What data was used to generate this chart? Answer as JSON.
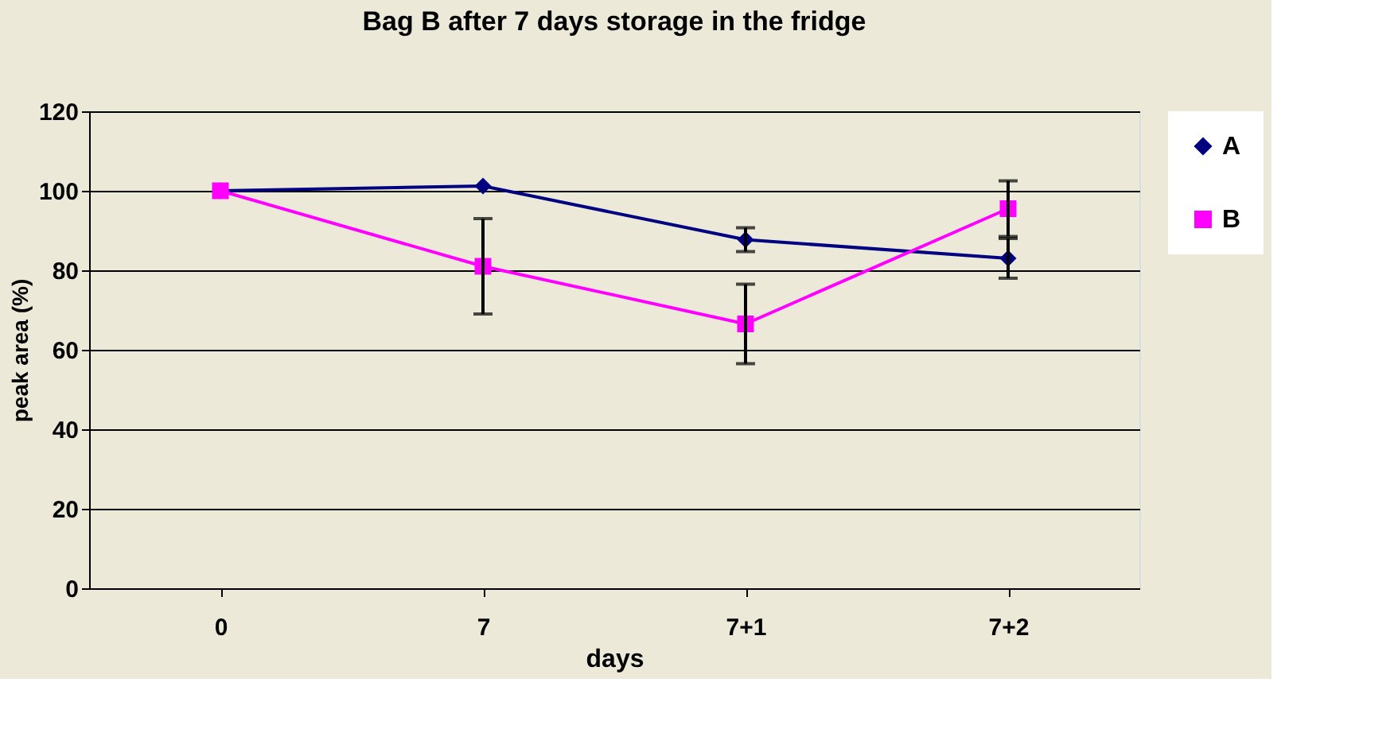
{
  "chart_data": {
    "type": "line",
    "title": "Bag B after 7 days storage in the fridge",
    "xlabel": "days",
    "ylabel": "peak area (%)",
    "categories": [
      "0",
      "7",
      "7+1",
      "7+2"
    ],
    "series": [
      {
        "name": "A",
        "color": "#000080",
        "marker": "diamond",
        "values": [
          100,
          101.2,
          87.7,
          83
        ],
        "errors": [
          null,
          null,
          3,
          5
        ]
      },
      {
        "name": "B",
        "color": "#ff00ff",
        "marker": "square",
        "values": [
          100,
          81,
          66.5,
          95.5
        ],
        "errors": [
          null,
          12,
          10,
          7
        ]
      }
    ],
    "ylim": [
      0,
      120
    ],
    "yticks": [
      0,
      20,
      40,
      60,
      80,
      100,
      120
    ],
    "grid": "y",
    "legend": "right"
  }
}
